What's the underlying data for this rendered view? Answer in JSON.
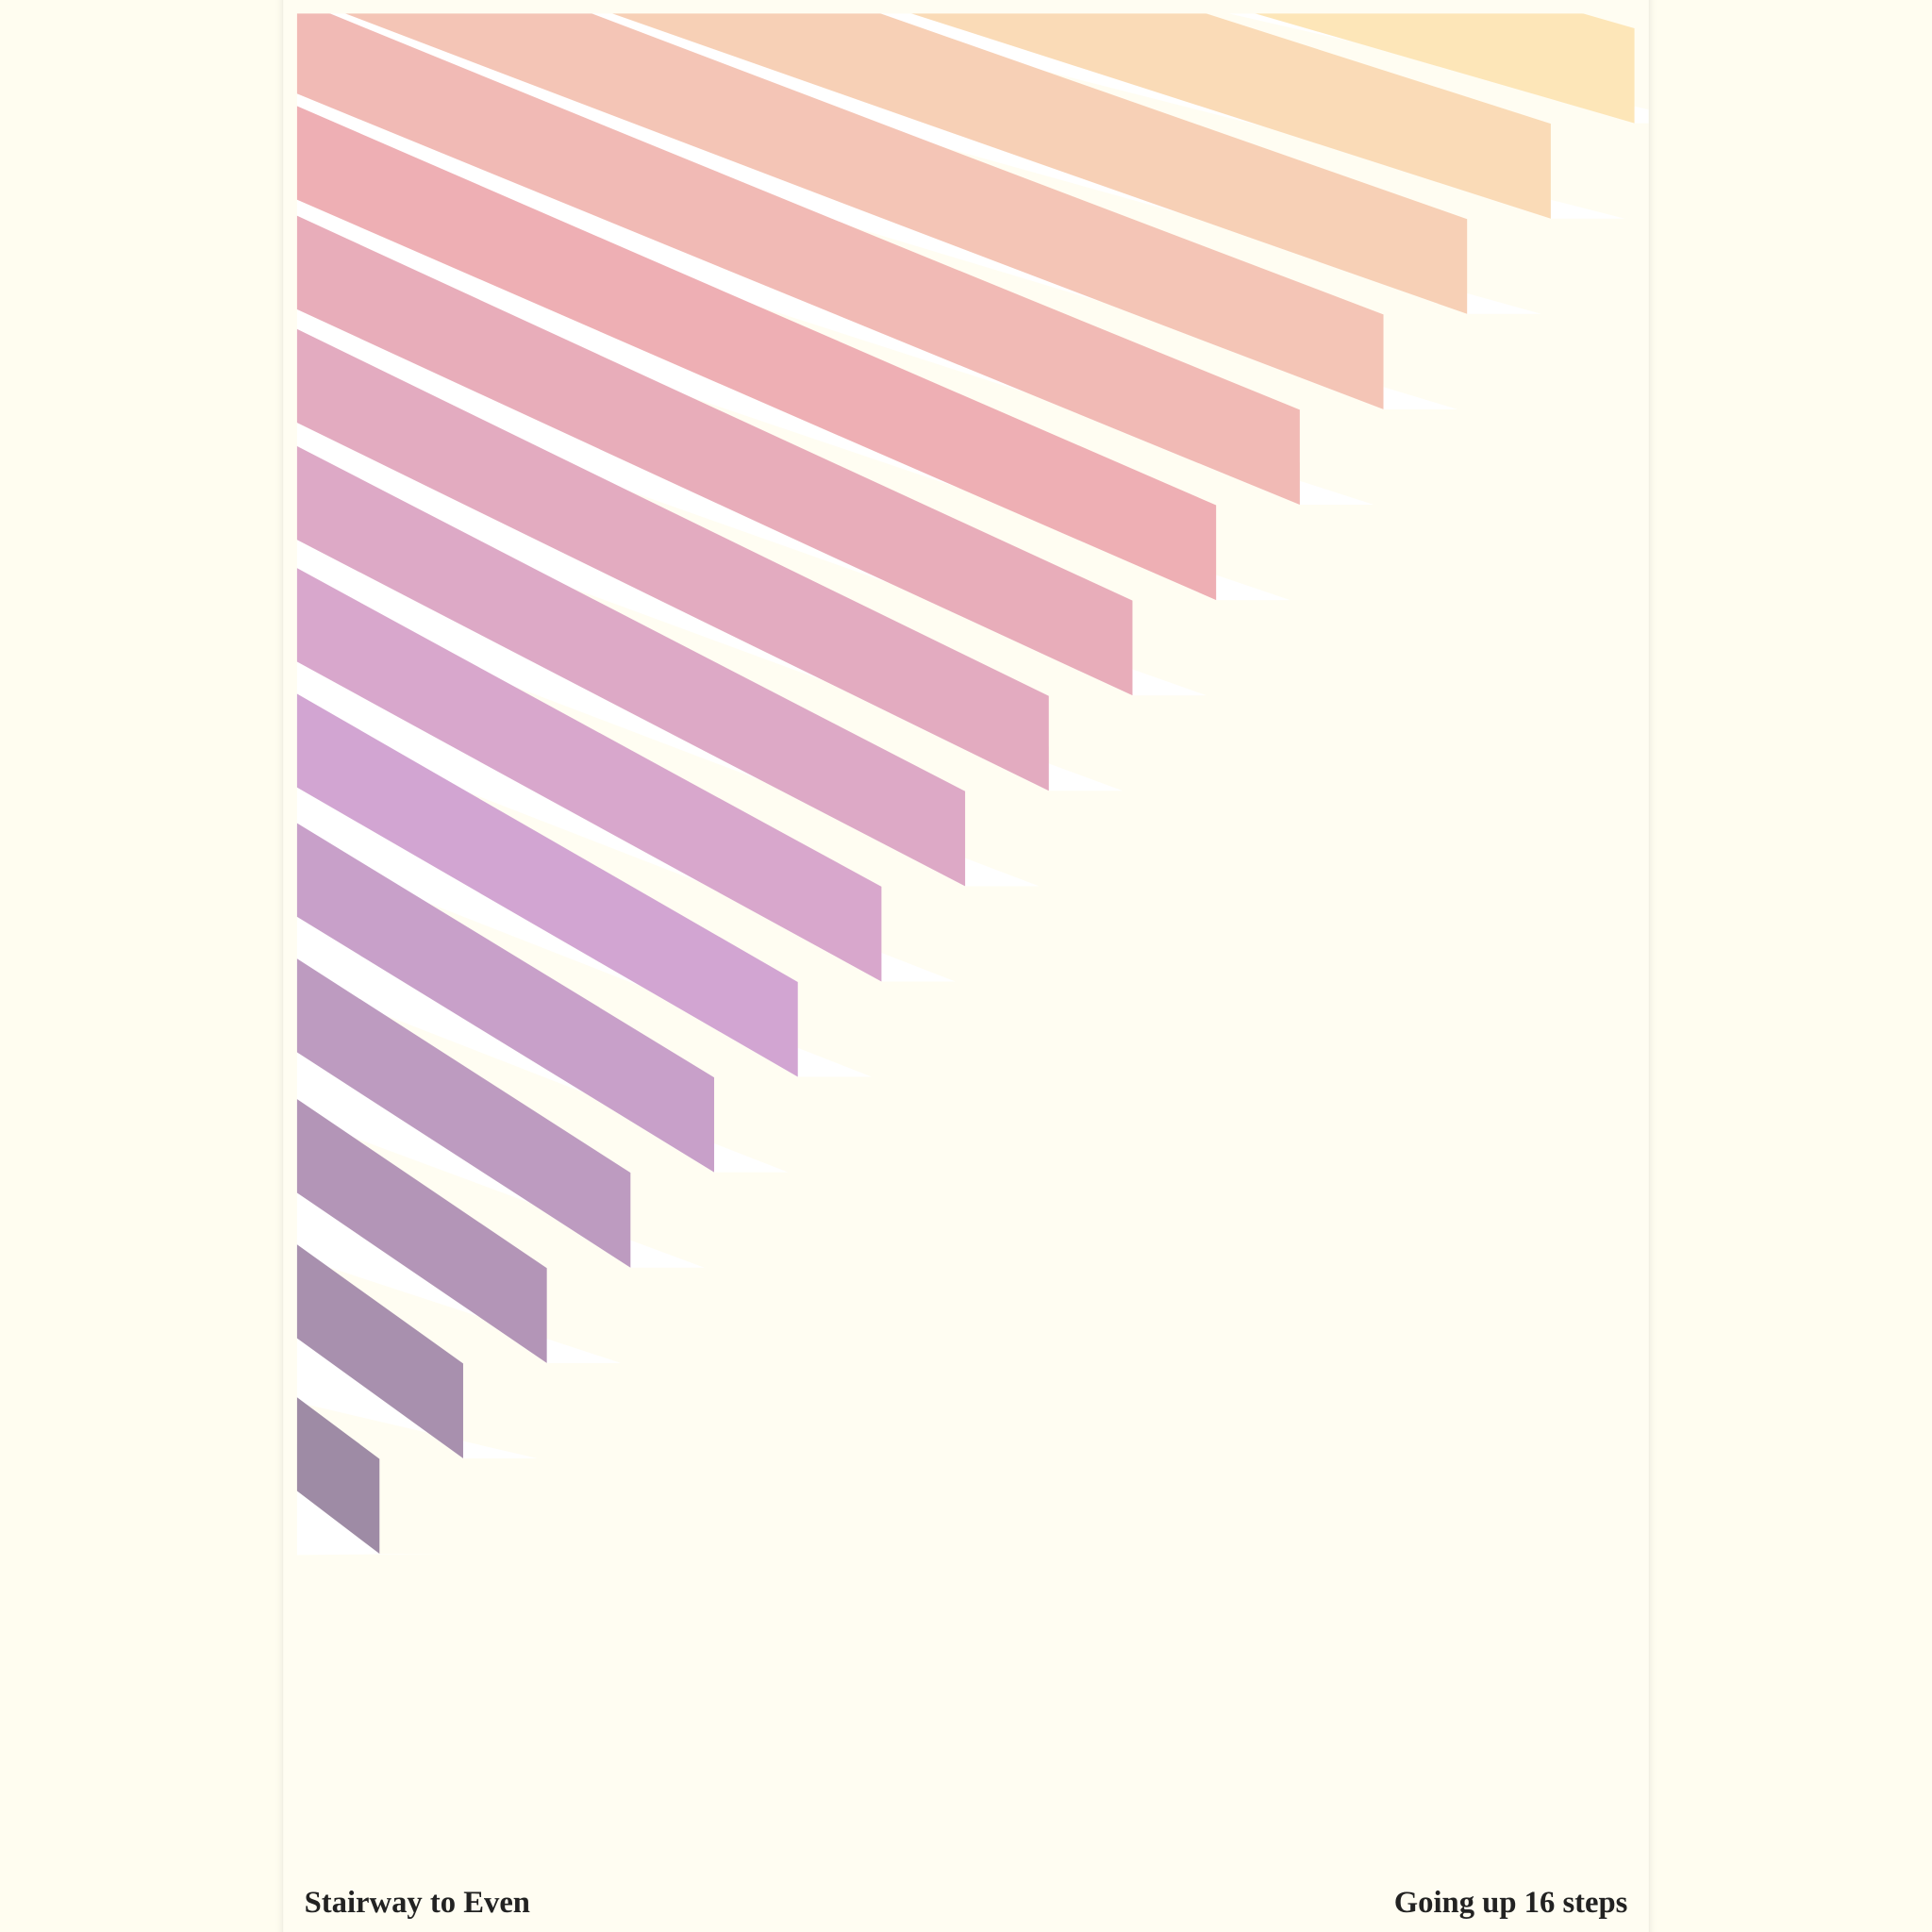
{
  "poster": {
    "title": "Stairway to Even",
    "caption": "Going up 16 steps"
  }
}
